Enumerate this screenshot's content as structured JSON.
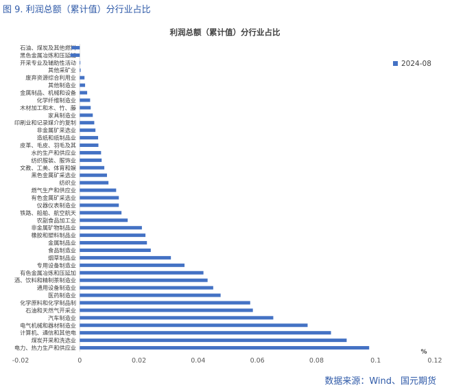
{
  "figure": {
    "caption": "图 9. 利润总额（累计值）分行业占比",
    "source": "数据来源：Wind、国元期货"
  },
  "colors": {
    "caption": "#2f5aa8",
    "bar": "#4472C4",
    "axis": "#d9d9d9"
  },
  "chart_data": {
    "type": "bar",
    "orientation": "horizontal",
    "title": "利润总额（累计值）分行业占比",
    "xlabel": "",
    "ylabel": "",
    "x_unit_label": "%",
    "xlim": [
      -0.02,
      0.12
    ],
    "xticks": [
      "-0.02",
      "0",
      "0.02",
      "0.04",
      "0.06",
      "0.08",
      "0.1",
      "0.12"
    ],
    "grid": false,
    "legend_position": "top-right",
    "categories": [
      "石油、煤炭及其他燃料",
      "黑色金属冶炼和压延加",
      "开采专业及辅助性活动",
      "其他采矿业",
      "废弃资源综合利用业",
      "其他制造业",
      "金属制品、机械和设备",
      "化学纤维制造业",
      "木材加工和木、竹、藤",
      "家具制造业",
      "印刷业和记录媒介的复制",
      "非金属矿采选业",
      "造纸和纸制品业",
      "皮革、毛皮、羽毛及其",
      "水的生产和供应业",
      "纺织服装、服饰业",
      "文教、工美、体育和娱",
      "黑色金属矿采选业",
      "纺织业",
      "燃气生产和供应业",
      "有色金属矿采选业",
      "仪器仪表制造业",
      "铁路、船舶、航空航天",
      "农副食品加工业",
      "非金属矿物制品业",
      "橡胶和塑料制品业",
      "金属制品业",
      "食品制造业",
      "烟草制品业",
      "专用设备制造业",
      "有色金属冶炼和压延加",
      "酒、饮料和精制茶制造业",
      "通用设备制造业",
      "医药制造业",
      "化学原料和化学制品制",
      "石油和天然气开采业",
      "汽车制造业",
      "电气机械和器材制造业",
      "计算机、通信和其他电",
      "煤炭开采和洗选业",
      "电力、热力生产和供应业"
    ],
    "series": [
      {
        "name": "2024-08",
        "color": "#4472C4",
        "values": [
          -0.0028,
          -0.0032,
          0.0002,
          0.0003,
          0.0016,
          0.0018,
          0.0025,
          0.0035,
          0.0037,
          0.0044,
          0.0049,
          0.0053,
          0.0062,
          0.0063,
          0.0072,
          0.0074,
          0.0083,
          0.0092,
          0.0097,
          0.0123,
          0.0132,
          0.0132,
          0.0141,
          0.0162,
          0.021,
          0.0222,
          0.0227,
          0.024,
          0.0308,
          0.0354,
          0.0418,
          0.0432,
          0.0451,
          0.0476,
          0.0576,
          0.0585,
          0.0654,
          0.077,
          0.0849,
          0.0902,
          0.0978
        ]
      }
    ]
  }
}
